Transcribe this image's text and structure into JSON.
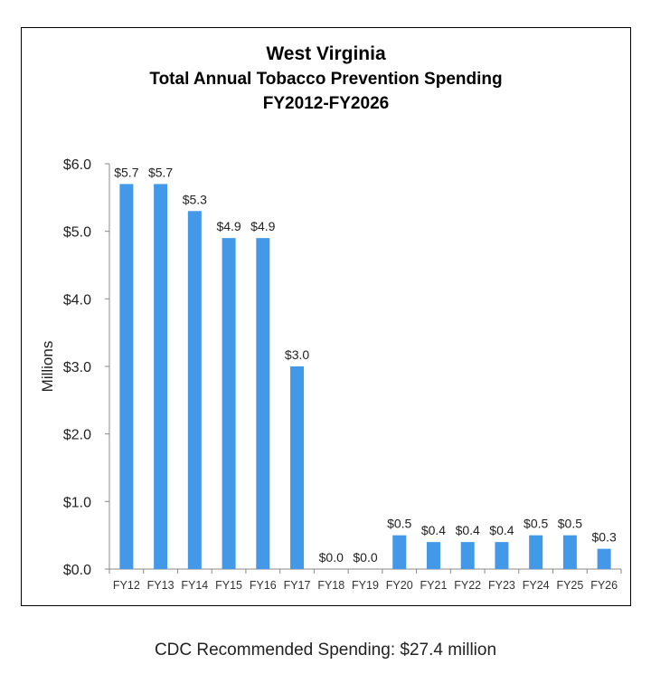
{
  "chart_data": {
    "type": "bar",
    "title": "West Virginia",
    "subtitle": "Total Annual Tobacco Prevention Spending",
    "subtitle2": "FY2012-FY2026",
    "xlabel": "",
    "ylabel": "Millions",
    "ylim": [
      0,
      6
    ],
    "yticks": [
      "$0.0",
      "$1.0",
      "$2.0",
      "$3.0",
      "$4.0",
      "$5.0",
      "$6.0"
    ],
    "grid": false,
    "categories": [
      "FY12",
      "FY13",
      "FY14",
      "FY15",
      "FY16",
      "FY17",
      "FY18",
      "FY19",
      "FY20",
      "FY21",
      "FY22",
      "FY23",
      "FY24",
      "FY25",
      "FY26"
    ],
    "values": [
      5.7,
      5.7,
      5.3,
      4.9,
      4.9,
      3.0,
      0.0,
      0.0,
      0.5,
      0.4,
      0.4,
      0.4,
      0.5,
      0.5,
      0.3
    ],
    "data_labels": [
      "$5.7",
      "$5.7",
      "$5.3",
      "$4.9",
      "$4.9",
      "$3.0",
      "$0.0",
      "$0.0",
      "$0.5",
      "$0.4",
      "$0.4",
      "$0.4",
      "$0.5",
      "$0.5",
      "$0.3"
    ],
    "bar_color": "#4399e8"
  },
  "footnote": "CDC Recommended Spending: $27.4 million"
}
